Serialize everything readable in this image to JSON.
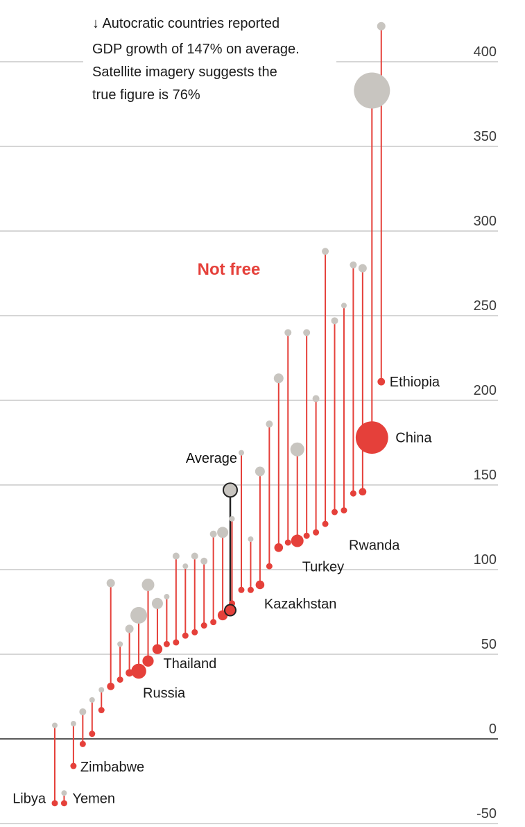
{
  "chart_data": {
    "type": "dumbbell",
    "yticks": [
      "400",
      "350",
      "300",
      "250",
      "200",
      "150",
      "100",
      "50",
      "0",
      "-50"
    ],
    "ytick_values": [
      400,
      350,
      300,
      250,
      200,
      150,
      100,
      50,
      0,
      -50
    ],
    "ylim": [
      -50,
      420
    ],
    "group_label": "Not free",
    "annotation": [
      "↓ Autocratic countries reported",
      "GDP growth of 147% on average.",
      "Satellite imagery suggests the",
      "true figure is 76%"
    ],
    "average": {
      "label": "Average",
      "reported": 147,
      "satellite": 76
    },
    "colors": {
      "reported": "#c8c5c0",
      "satellite": "#e5403a",
      "connector": "#e5403a",
      "average": "#222222",
      "grid": "#d6d6d6",
      "zero": "#222222"
    },
    "countries": [
      {
        "reported": 8,
        "satellite": -38,
        "size": 4,
        "label": "Libya"
      },
      {
        "reported": -32,
        "satellite": -38,
        "size": 4,
        "label": "Yemen"
      },
      {
        "reported": 9,
        "satellite": -16,
        "size": 4,
        "label": "Zimbabwe"
      },
      {
        "reported": 16,
        "satellite": -3,
        "size": 5,
        "label": ""
      },
      {
        "reported": 23,
        "satellite": 3,
        "size": 4,
        "label": ""
      },
      {
        "reported": 29,
        "satellite": 17,
        "size": 4,
        "label": ""
      },
      {
        "reported": 92,
        "satellite": 31,
        "size": 6,
        "label": ""
      },
      {
        "reported": 56,
        "satellite": 35,
        "size": 4,
        "label": ""
      },
      {
        "reported": 65,
        "satellite": 39,
        "size": 6,
        "label": ""
      },
      {
        "reported": 73,
        "satellite": 40,
        "size": 12,
        "label": "Russia"
      },
      {
        "reported": 91,
        "satellite": 46,
        "size": 9,
        "label": "Thailand"
      },
      {
        "reported": 80,
        "satellite": 53,
        "size": 8,
        "label": ""
      },
      {
        "reported": 84,
        "satellite": 56,
        "size": 4,
        "label": ""
      },
      {
        "reported": 108,
        "satellite": 57,
        "size": 5,
        "label": ""
      },
      {
        "reported": 102,
        "satellite": 61,
        "size": 4,
        "label": ""
      },
      {
        "reported": 108,
        "satellite": 63,
        "size": 5,
        "label": ""
      },
      {
        "reported": 105,
        "satellite": 67,
        "size": 5,
        "label": ""
      },
      {
        "reported": 121,
        "satellite": 69,
        "size": 5,
        "label": ""
      },
      {
        "reported": 122,
        "satellite": 73,
        "size": 8,
        "label": ""
      },
      {
        "reported": 130,
        "satellite": 80,
        "size": 4,
        "label": ""
      },
      {
        "reported": 169,
        "satellite": 88,
        "size": 4,
        "label": ""
      },
      {
        "reported": 118,
        "satellite": 88,
        "size": 4,
        "label": ""
      },
      {
        "reported": 158,
        "satellite": 91,
        "size": 7,
        "label": "Kazakhstan"
      },
      {
        "reported": 186,
        "satellite": 102,
        "size": 5,
        "label": ""
      },
      {
        "reported": 213,
        "satellite": 113,
        "size": 7,
        "label": ""
      },
      {
        "reported": 240,
        "satellite": 116,
        "size": 5,
        "label": ""
      },
      {
        "reported": 171,
        "satellite": 117,
        "size": 10,
        "label": "Turkey"
      },
      {
        "reported": 240,
        "satellite": 120,
        "size": 5,
        "label": ""
      },
      {
        "reported": 201,
        "satellite": 122,
        "size": 5,
        "label": ""
      },
      {
        "reported": 288,
        "satellite": 127,
        "size": 5,
        "label": ""
      },
      {
        "reported": 247,
        "satellite": 134,
        "size": 5,
        "label": ""
      },
      {
        "reported": 256,
        "satellite": 135,
        "size": 4,
        "label": "Rwanda"
      },
      {
        "reported": 280,
        "satellite": 145,
        "size": 5,
        "label": ""
      },
      {
        "reported": 278,
        "satellite": 146,
        "size": 6,
        "label": ""
      },
      {
        "reported": 383,
        "satellite": 178,
        "size": 26,
        "label": "China"
      },
      {
        "reported": 421,
        "satellite": 211,
        "size": 6,
        "label": "Ethiopia"
      }
    ]
  }
}
